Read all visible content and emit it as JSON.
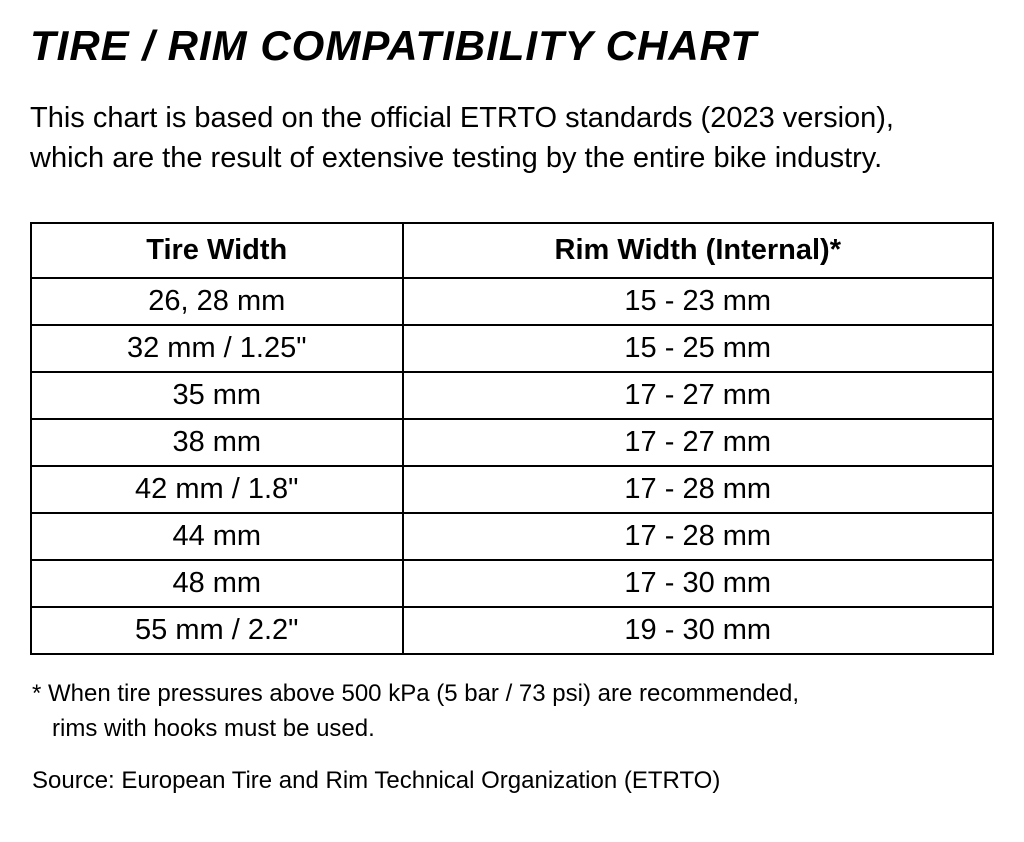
{
  "title": "TIRE / RIM COMPATIBILITY CHART",
  "description": "This chart is based on the official ETRTO standards (2023 version), which are the result of extensive testing by the entire bike industry.",
  "table": {
    "columns": [
      "Tire Width",
      "Rim Width (Internal)*"
    ],
    "rows": [
      [
        "26, 28 mm",
        "15 - 23 mm"
      ],
      [
        "32 mm / 1.25\"",
        "15 - 25 mm"
      ],
      [
        "35 mm",
        "17 - 27 mm"
      ],
      [
        "38 mm",
        "17 - 27 mm"
      ],
      [
        "42 mm / 1.8\"",
        "17 - 28 mm"
      ],
      [
        "44 mm",
        "17 - 28 mm"
      ],
      [
        "48 mm",
        "17 - 30 mm"
      ],
      [
        "55 mm / 2.2\"",
        "19 - 30 mm"
      ]
    ],
    "header_fontsize": 29,
    "cell_fontsize": 29,
    "border_color": "#000000",
    "border_width": 2,
    "column_widths": [
      "50%",
      "50%"
    ]
  },
  "footnote_line1": "* When tire pressures above 500 kPa (5 bar / 73 psi) are recommended,",
  "footnote_line2": "rims with hooks must be used.",
  "source": "Source: European Tire and Rim Technical Organization (ETRTO)",
  "colors": {
    "text": "#000000",
    "background": "#ffffff",
    "border": "#000000"
  },
  "typography": {
    "title_fontsize": 42,
    "title_weight": 900,
    "title_style": "italic",
    "body_fontsize": 29,
    "footnote_fontsize": 24
  }
}
